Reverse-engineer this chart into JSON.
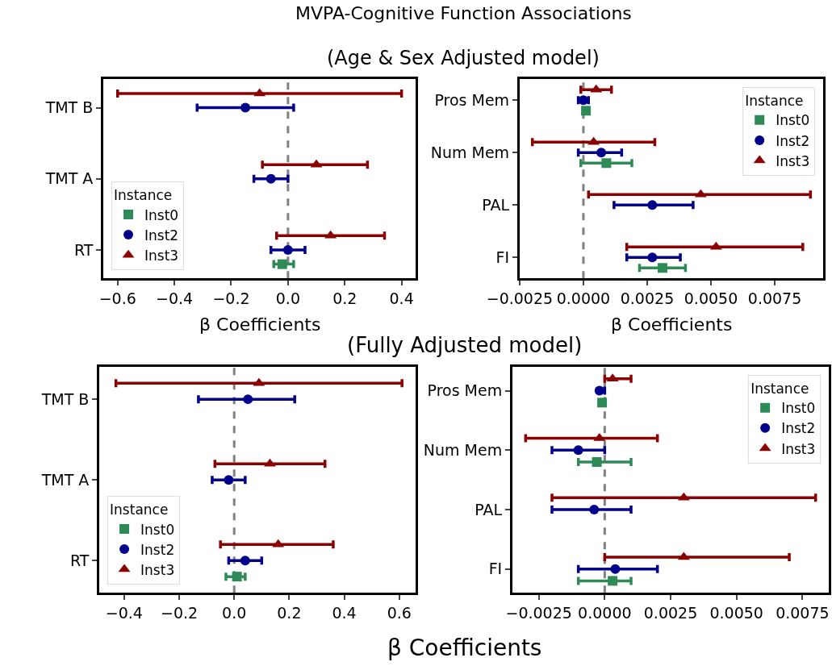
{
  "chart_data": [
    {
      "type": "scatter",
      "orientation": "horizontal",
      "title": "MVPA-Cognitive Function Associations",
      "subtitle": "(Age & Sex Adjusted model)",
      "xlabel": "β Coefficients",
      "legend_title": "Instance",
      "legend": "bottom left",
      "grid": false,
      "categories": [
        "TMT B",
        "TMT A",
        "RT"
      ],
      "xlim": [
        -0.65,
        0.45
      ],
      "xticks": [
        {
          "value": -0.6,
          "label": "−0.6"
        },
        {
          "value": -0.4,
          "label": "−0.4"
        },
        {
          "value": -0.2,
          "label": "−0.2"
        },
        {
          "value": 0,
          "label": "0.0"
        },
        {
          "value": 0.2,
          "label": "0.2"
        },
        {
          "value": 0.4,
          "label": "0.4"
        }
      ],
      "ref_lines": [
        {
          "axis": "x",
          "value": 0,
          "color": "#808080",
          "line_style": "dashed"
        }
      ],
      "series": [
        {
          "name": "Inst0",
          "color": "#2e8b57",
          "marker": "square",
          "values": [
            null,
            null,
            -0.02
          ],
          "errors": [
            null,
            null,
            [
              -0.05,
              0.02
            ]
          ]
        },
        {
          "name": "Inst2",
          "color": "#00008b",
          "marker": "circle",
          "values": [
            -0.15,
            -0.06,
            0.0
          ],
          "errors": [
            [
              -0.32,
              0.02
            ],
            [
              -0.12,
              0.0
            ],
            [
              -0.06,
              0.06
            ]
          ]
        },
        {
          "name": "Inst3",
          "color": "#8b0000",
          "marker": "triangle",
          "values": [
            -0.1,
            0.1,
            0.15
          ],
          "errors": [
            [
              -0.6,
              0.4
            ],
            [
              -0.09,
              0.28
            ],
            [
              -0.04,
              0.34
            ]
          ]
        }
      ]
    },
    {
      "type": "scatter",
      "orientation": "horizontal",
      "xlabel": "β Coefficients",
      "legend_title": "Instance",
      "legend": "top right",
      "grid": false,
      "categories": [
        "Pros Mem",
        "Num Mem",
        "PAL",
        "FI"
      ],
      "xlim": [
        -0.0025,
        0.0094
      ],
      "xticks": [
        {
          "value": -0.0025,
          "label": "−0.0025"
        },
        {
          "value": 0,
          "label": "0.0000"
        },
        {
          "value": 0.0025,
          "label": "0.0025"
        },
        {
          "value": 0.005,
          "label": "0.0050"
        },
        {
          "value": 0.0075,
          "label": "0.0075"
        }
      ],
      "ref_lines": [
        {
          "axis": "x",
          "value": 0,
          "color": "#808080",
          "line_style": "dashed"
        }
      ],
      "series": [
        {
          "name": "Inst0",
          "color": "#2e8b57",
          "marker": "square",
          "values": [
            0.0001,
            0.0009,
            null,
            0.0031
          ],
          "errors": [
            null,
            [
              -0.0001,
              0.0019
            ],
            null,
            [
              0.0022,
              0.004
            ]
          ]
        },
        {
          "name": "Inst2",
          "color": "#00008b",
          "marker": "circle",
          "values": [
            0.0,
            0.0007,
            0.0027,
            0.0027
          ],
          "errors": [
            [
              -0.0002,
              0.0002
            ],
            [
              -0.0002,
              0.0015
            ],
            [
              0.0012,
              0.0043
            ],
            [
              0.0017,
              0.0038
            ]
          ]
        },
        {
          "name": "Inst3",
          "color": "#8b0000",
          "marker": "triangle",
          "values": [
            0.0005,
            0.0004,
            0.0046,
            0.0052
          ],
          "errors": [
            [
              -0.0001,
              0.0011
            ],
            [
              -0.002,
              0.0028
            ],
            [
              0.0002,
              0.0089
            ],
            [
              0.0017,
              0.0086
            ]
          ]
        }
      ]
    },
    {
      "type": "scatter",
      "orientation": "horizontal",
      "title": "(Fully Adjusted model)",
      "xlabel": "β Coefficients",
      "legend_title": "Instance",
      "legend": "bottom left",
      "grid": false,
      "categories": [
        "TMT B",
        "TMT A",
        "RT"
      ],
      "xlim": [
        -0.49,
        0.66
      ],
      "xticks": [
        {
          "value": -0.4,
          "label": "−0.4"
        },
        {
          "value": -0.2,
          "label": "−0.2"
        },
        {
          "value": 0,
          "label": "0.0"
        },
        {
          "value": 0.2,
          "label": "0.2"
        },
        {
          "value": 0.4,
          "label": "0.4"
        },
        {
          "value": 0.6,
          "label": "0.6"
        }
      ],
      "ref_lines": [
        {
          "axis": "x",
          "value": 0,
          "color": "#808080",
          "line_style": "dashed"
        }
      ],
      "series": [
        {
          "name": "Inst0",
          "color": "#2e8b57",
          "marker": "square",
          "values": [
            null,
            null,
            0.01
          ],
          "errors": [
            null,
            null,
            [
              -0.03,
              0.04
            ]
          ]
        },
        {
          "name": "Inst2",
          "color": "#00008b",
          "marker": "circle",
          "values": [
            0.05,
            -0.02,
            0.04
          ],
          "errors": [
            [
              -0.13,
              0.22
            ],
            [
              -0.08,
              0.04
            ],
            [
              -0.02,
              0.1
            ]
          ]
        },
        {
          "name": "Inst3",
          "color": "#8b0000",
          "marker": "triangle",
          "values": [
            0.09,
            0.13,
            0.16
          ],
          "errors": [
            [
              -0.43,
              0.61
            ],
            [
              -0.07,
              0.33
            ],
            [
              -0.05,
              0.36
            ]
          ]
        }
      ]
    },
    {
      "type": "scatter",
      "orientation": "horizontal",
      "legend_title": "Instance",
      "legend": "top right",
      "grid": false,
      "categories": [
        "Pros Mem",
        "Num Mem",
        "PAL",
        "FI"
      ],
      "xlim": [
        -0.0035,
        0.0085
      ],
      "xticks": [
        {
          "value": -0.0025,
          "label": "−0.0025"
        },
        {
          "value": 0,
          "label": "0.0000"
        },
        {
          "value": 0.0025,
          "label": "0.0025"
        },
        {
          "value": 0.005,
          "label": "0.0050"
        },
        {
          "value": 0.0075,
          "label": "0.0075"
        }
      ],
      "ref_lines": [
        {
          "axis": "x",
          "value": 0,
          "color": "#808080",
          "line_style": "dashed"
        }
      ],
      "series": [
        {
          "name": "Inst0",
          "color": "#2e8b57",
          "marker": "square",
          "values": [
            -0.0001,
            -0.0003,
            null,
            0.0003
          ],
          "errors": [
            null,
            [
              -0.001,
              0.001
            ],
            null,
            [
              -0.001,
              0.001
            ]
          ]
        },
        {
          "name": "Inst2",
          "color": "#00008b",
          "marker": "circle",
          "values": [
            -0.0002,
            -0.001,
            -0.0004,
            0.0004
          ],
          "errors": [
            [
              -0.0002,
              0.0
            ],
            [
              -0.002,
              0.0
            ],
            [
              -0.002,
              0.001
            ],
            [
              -0.001,
              0.002
            ]
          ]
        },
        {
          "name": "Inst3",
          "color": "#8b0000",
          "marker": "triangle",
          "values": [
            0.0003,
            -0.0002,
            0.003,
            0.003
          ],
          "errors": [
            [
              0.0,
              0.001
            ],
            [
              -0.003,
              0.002
            ],
            [
              -0.002,
              0.008
            ],
            [
              0.0,
              0.007
            ]
          ]
        }
      ]
    }
  ]
}
